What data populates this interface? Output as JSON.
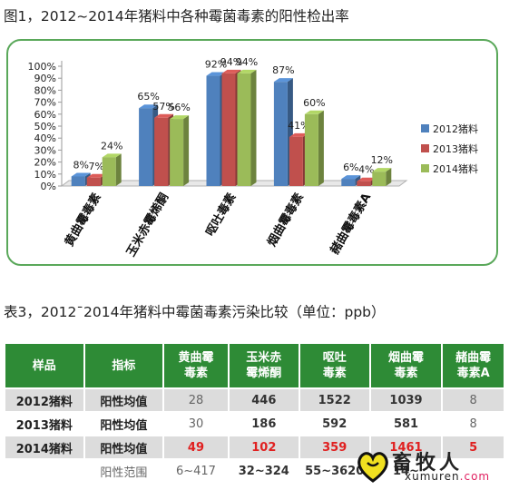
{
  "figure_title": "图1，2012~2014年猪料中各种霉菌毒素的阳性检出率",
  "chart_data": {
    "type": "bar",
    "categories": [
      "黄曲霉毒素",
      "玉米赤霉烯酮",
      "呕吐毒素",
      "烟曲霉毒素",
      "赭曲霉毒素A"
    ],
    "series": [
      {
        "name": "2012猪料",
        "values": [
          8,
          65,
          92,
          87,
          6
        ],
        "labels": [
          "8%",
          "65%",
          "92%",
          "87%",
          "6%"
        ]
      },
      {
        "name": "2013猪料",
        "values": [
          7,
          57,
          94,
          41,
          4
        ],
        "labels": [
          "7%",
          "57%",
          "94%",
          "41%",
          "4%"
        ]
      },
      {
        "name": "2014猪料",
        "values": [
          24,
          56,
          94,
          60,
          12
        ],
        "labels": [
          "24%",
          "56%",
          "94%",
          "60%",
          "12%"
        ]
      }
    ],
    "yticks": [
      "0%",
      "10%",
      "20%",
      "30%",
      "40%",
      "50%",
      "60%",
      "70%",
      "80%",
      "90%",
      "100%"
    ],
    "ylim": [
      0,
      100
    ],
    "legend_position": "right",
    "grid": false,
    "colors": {
      "2012猪料": "#4f81bd",
      "2013猪料": "#c0504d",
      "2014猪料": "#9bbb59"
    }
  },
  "table_title": "表3，2012¯2014年猪料中霉菌毒素污染比较（单位：ppb）",
  "table": {
    "headers": [
      {
        "line1": "样品",
        "line2": ""
      },
      {
        "line1": "指标",
        "line2": ""
      },
      {
        "line1": "黄曲霉",
        "line2": "毒素"
      },
      {
        "line1": "玉米赤",
        "line2": "霉烯酮"
      },
      {
        "line1": "呕吐",
        "line2": "毒素"
      },
      {
        "line1": "烟曲霉",
        "line2": "毒素"
      },
      {
        "line1": "赭曲霉",
        "line2": "毒素A"
      }
    ],
    "rows": [
      {
        "sample": "2012猪料",
        "metric": "阳性均值",
        "values": [
          "28",
          "446",
          "1522",
          "1039",
          "8"
        ]
      },
      {
        "sample": "2013猪料",
        "metric": "阳性均值",
        "values": [
          "30",
          "186",
          "592",
          "581",
          "8"
        ]
      },
      {
        "sample": "2014猪料",
        "metric": "阳性均值",
        "values": [
          "49",
          "102",
          "359",
          "1461",
          "5"
        ]
      },
      {
        "sample": "",
        "metric": "阳性范围",
        "values": [
          "6~417",
          "32~324",
          "55~3620",
          "14~",
          ""
        ]
      }
    ]
  },
  "watermark": {
    "cn": "畜牧人",
    "en": "xumuren",
    "en_suffix": ".com"
  }
}
